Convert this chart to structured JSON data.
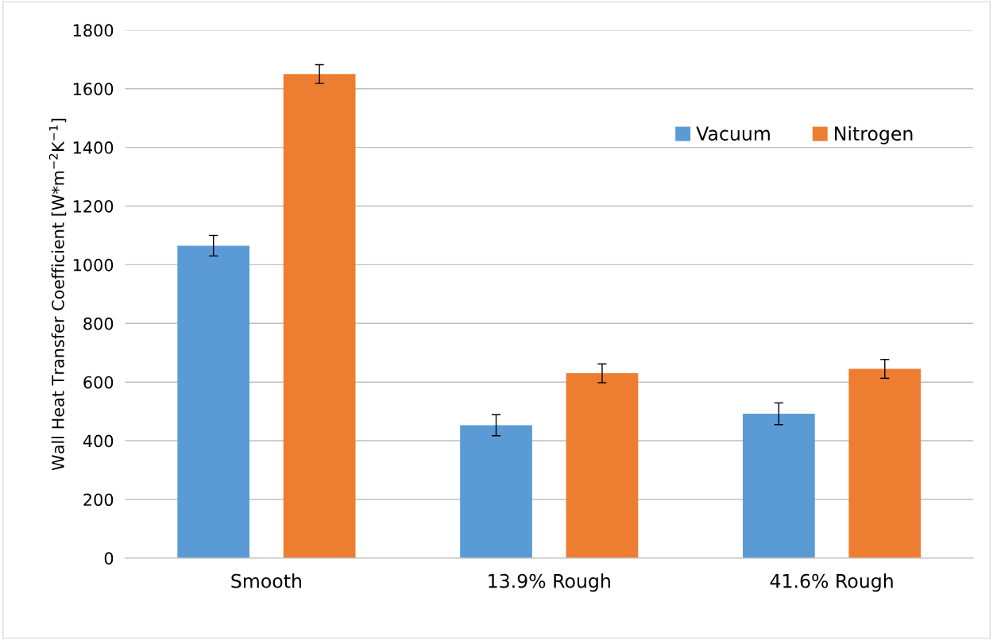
{
  "chart_data": {
    "type": "bar",
    "ylabel": "Wall Heat Transfer Coefficient [W*m$^{−2}$K$^{−1}$]",
    "categories": [
      "Smooth",
      "13.9% Rough",
      "41.6% Rough"
    ],
    "series": [
      {
        "name": "Vacuum",
        "color": "#5b9bd5",
        "values": [
          1065,
          453,
          492
        ],
        "errors": [
          35,
          36,
          37
        ]
      },
      {
        "name": "Nitrogen",
        "color": "#ed7d31",
        "values": [
          1650,
          630,
          645
        ],
        "errors": [
          32,
          32,
          32
        ]
      }
    ],
    "ylim": [
      0,
      1800
    ],
    "yticks": [
      0,
      200,
      400,
      600,
      800,
      1000,
      1200,
      1400,
      1600,
      1800
    ],
    "grid": "y",
    "legend": "top right"
  }
}
